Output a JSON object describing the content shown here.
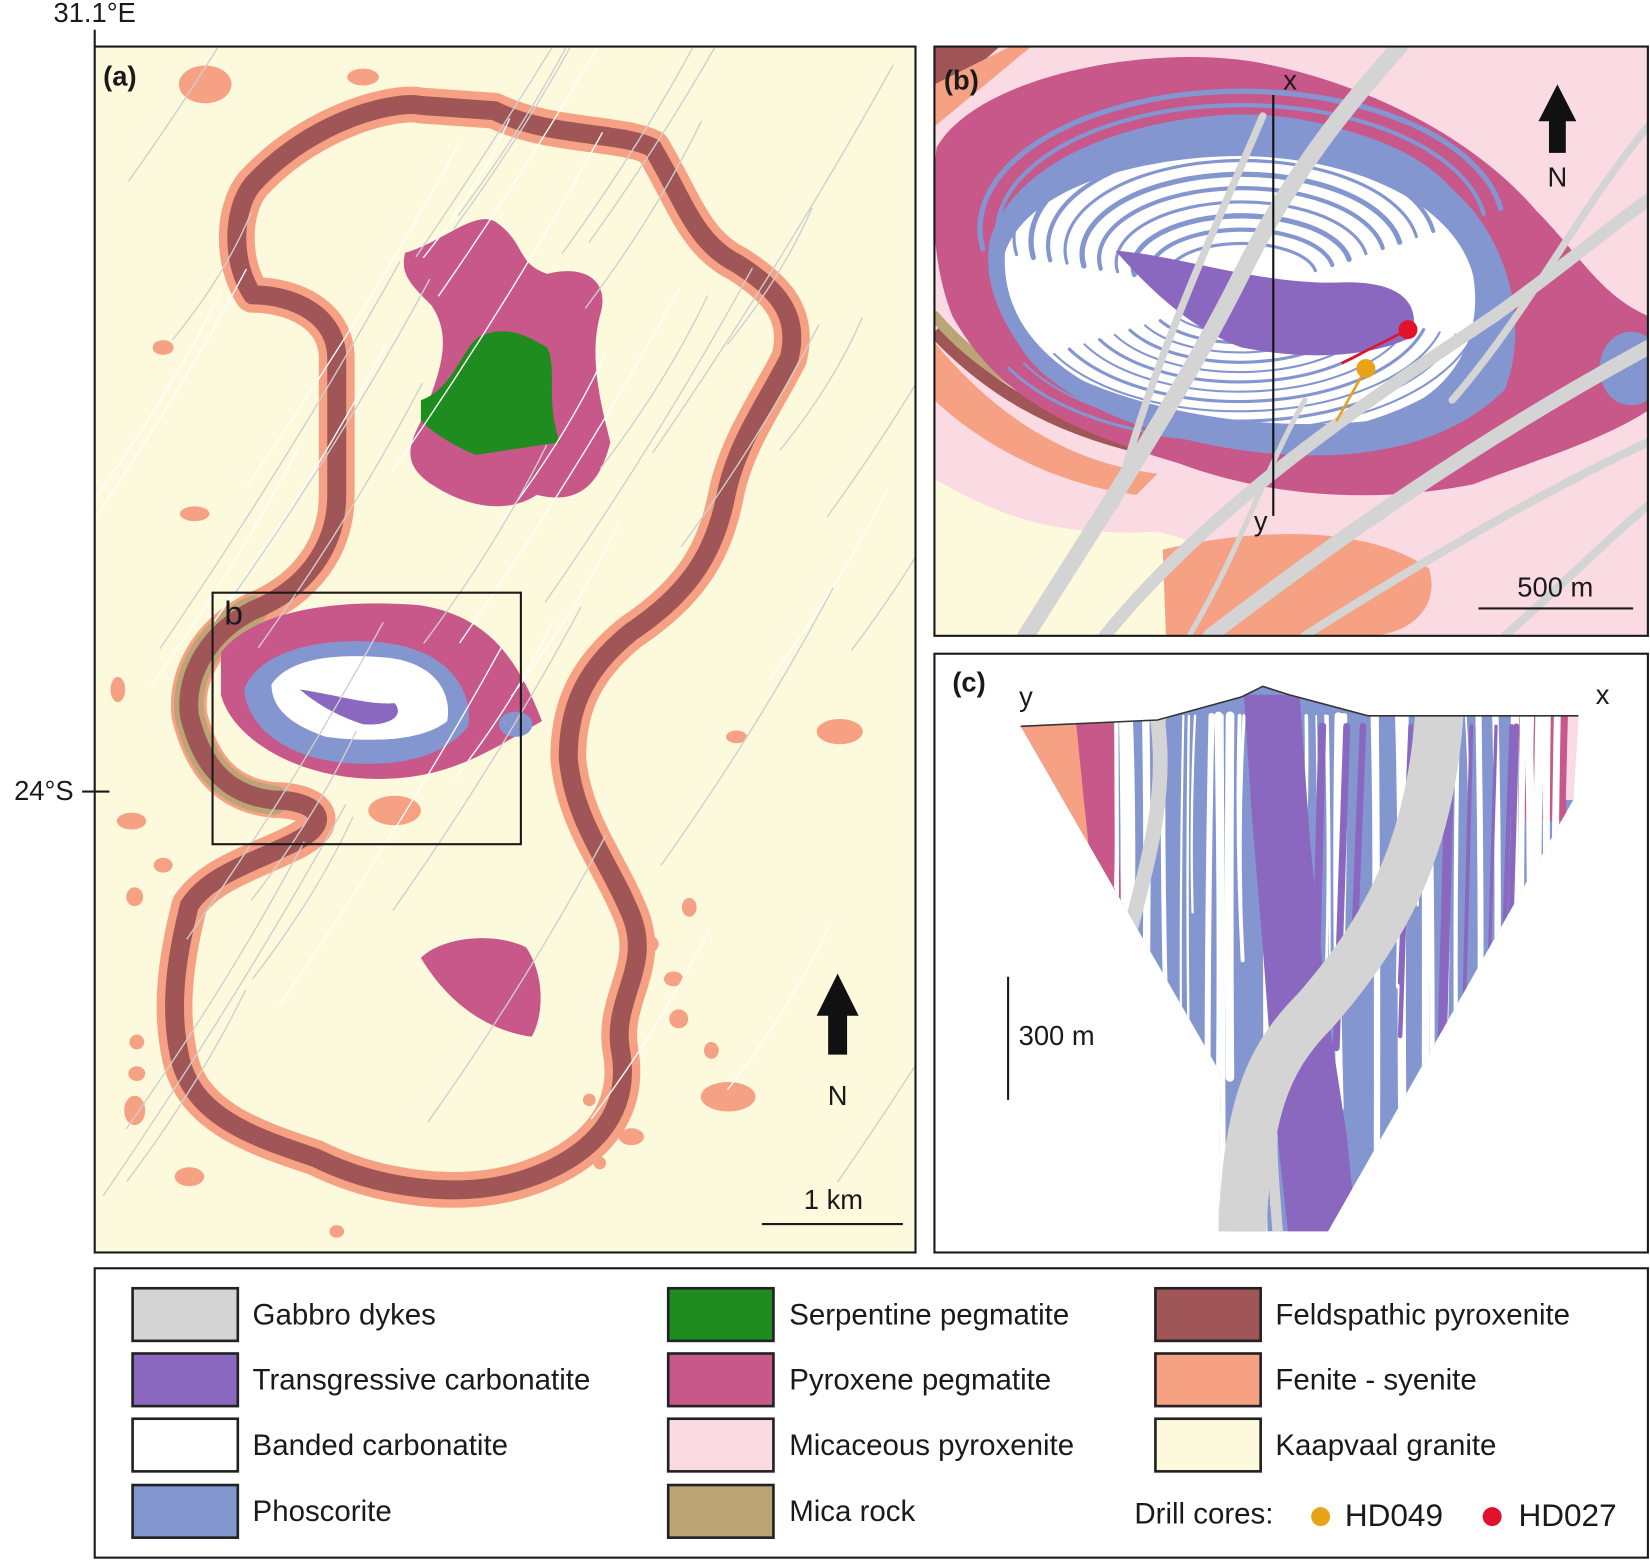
{
  "panel_a": {
    "label": "(a)",
    "longitude": "31.1°E",
    "latitude": "24°S",
    "inset_label": "b",
    "north": "N",
    "scale": "1 km"
  },
  "panel_b": {
    "label": "(b)",
    "section_top": "x",
    "section_bottom": "y",
    "north": "N",
    "scale": "500 m"
  },
  "panel_c": {
    "label": "(c)",
    "left_end": "y",
    "right_end": "x",
    "scale": "300 m"
  },
  "legend": {
    "items": [
      {
        "label": "Gabbro dykes",
        "color": "#d4d4d4"
      },
      {
        "label": "Transgressive carbonatite",
        "color": "#8a68c0"
      },
      {
        "label": "Banded carbonatite",
        "color": "#ffffff"
      },
      {
        "label": "Phoscorite",
        "color": "#8496d0"
      },
      {
        "label": "Serpentine pegmatite",
        "color": "#1e8c1e"
      },
      {
        "label": "Pyroxene pegmatite",
        "color": "#c8578a"
      },
      {
        "label": "Micaceous pyroxenite",
        "color": "#fadbe3"
      },
      {
        "label": "Mica rock",
        "color": "#bba476"
      },
      {
        "label": "Feldspathic pyroxenite",
        "color": "#a05656"
      },
      {
        "label": "Fenite - syenite",
        "color": "#f7a184"
      },
      {
        "label": "Kaapvaal granite",
        "color": "#fdf9dc"
      }
    ],
    "drill_cores_label": "Drill cores:",
    "drill_cores": [
      {
        "label": "HD049",
        "color": "#e8a317"
      },
      {
        "label": "HD027",
        "color": "#e3122c"
      }
    ]
  }
}
